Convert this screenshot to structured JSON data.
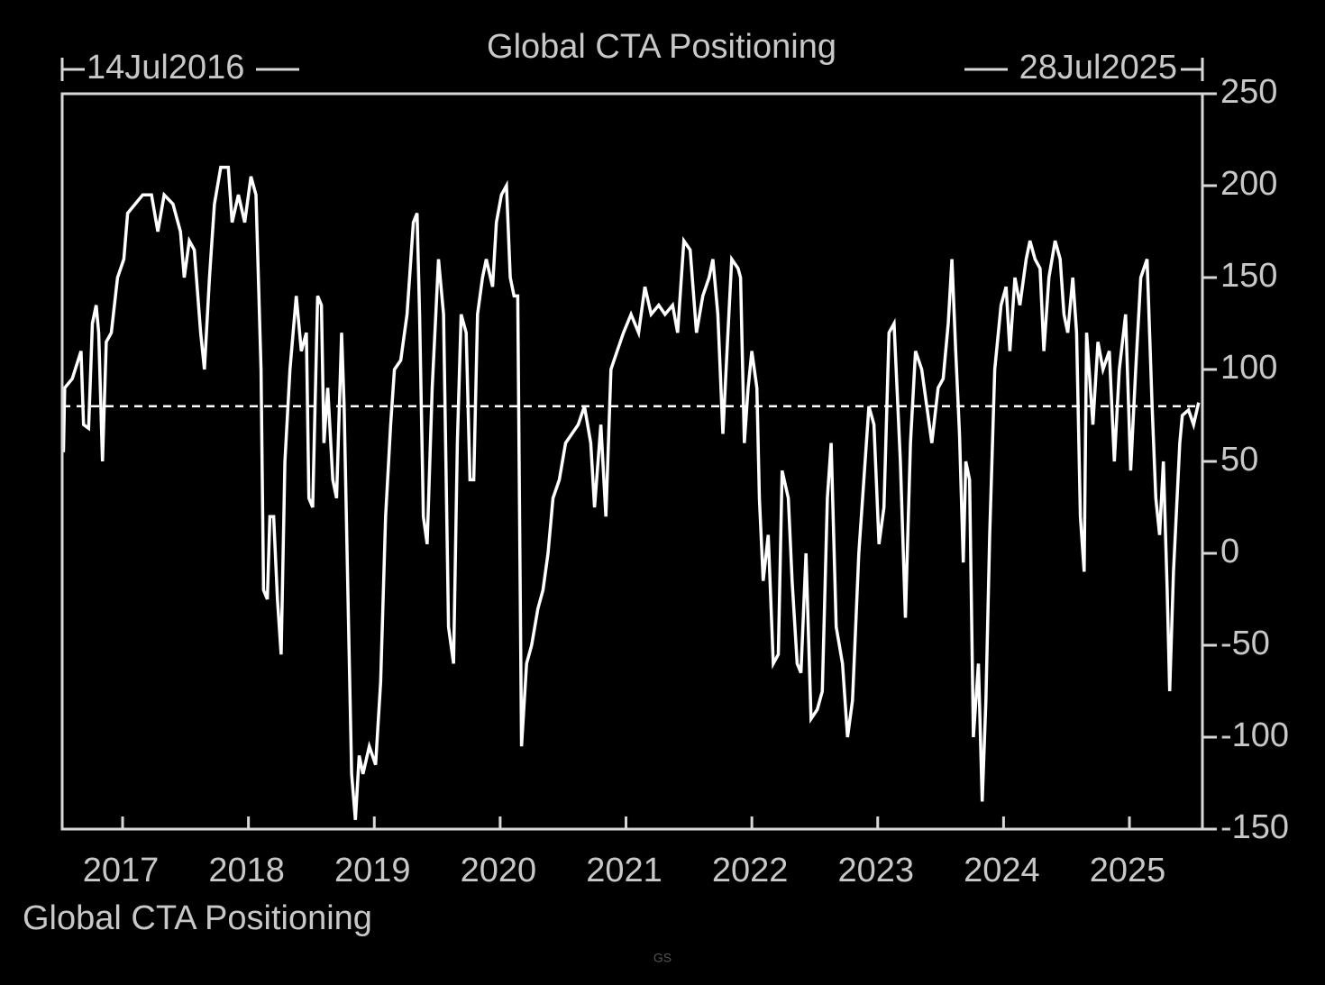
{
  "chart_data": {
    "type": "line",
    "title": "Global CTA Positioning",
    "start_label": "14Jul2016",
    "end_label": "28Jul2025",
    "source": "GS",
    "xlim": [
      2016.52,
      2025.58
    ],
    "xticks": [
      2017,
      2018,
      2019,
      2020,
      2021,
      2022,
      2023,
      2024,
      2025
    ],
    "ylim": [
      -150,
      250
    ],
    "yticks": [
      -150,
      -100,
      -50,
      0,
      50,
      100,
      150,
      200,
      250
    ],
    "y_axis_side": "right",
    "reference_line": 80,
    "legend": "bottom-left",
    "x": [
      2016.53,
      2016.54,
      2016.6,
      2016.67,
      2016.69,
      2016.73,
      2016.76,
      2016.79,
      2016.81,
      2016.84,
      2016.87,
      2016.91,
      2016.96,
      2017.01,
      2017.04,
      2017.1,
      2017.16,
      2017.23,
      2017.28,
      2017.33,
      2017.4,
      2017.46,
      2017.49,
      2017.53,
      2017.57,
      2017.62,
      2017.65,
      2017.69,
      2017.73,
      2017.78,
      2017.84,
      2017.87,
      2017.92,
      2017.97,
      2018.02,
      2018.06,
      2018.1,
      2018.12,
      2018.15,
      2018.17,
      2018.2,
      2018.23,
      2018.26,
      2018.29,
      2018.33,
      2018.38,
      2018.42,
      2018.46,
      2018.48,
      2018.51,
      2018.55,
      2018.58,
      2018.6,
      2018.63,
      2018.67,
      2018.7,
      2018.74,
      2018.76,
      2018.79,
      2018.82,
      2018.85,
      2018.88,
      2018.91,
      2018.96,
      2019.01,
      2019.05,
      2019.09,
      2019.13,
      2019.16,
      2019.21,
      2019.26,
      2019.31,
      2019.34,
      2019.36,
      2019.39,
      2019.42,
      2019.46,
      2019.51,
      2019.55,
      2019.59,
      2019.63,
      2019.66,
      2019.69,
      2019.73,
      2019.76,
      2019.79,
      2019.82,
      2019.86,
      2019.89,
      2019.94,
      2019.97,
      2020.01,
      2020.05,
      2020.08,
      2020.11,
      2020.14,
      2020.17,
      2020.21,
      2020.25,
      2020.3,
      2020.34,
      2020.38,
      2020.42,
      2020.47,
      2020.52,
      2020.57,
      2020.62,
      2020.67,
      2020.72,
      2020.75,
      2020.8,
      2020.84,
      2020.88,
      2020.93,
      2020.98,
      2021.04,
      2021.1,
      2021.15,
      2021.2,
      2021.26,
      2021.31,
      2021.37,
      2021.41,
      2021.46,
      2021.51,
      2021.56,
      2021.61,
      2021.66,
      2021.69,
      2021.73,
      2021.77,
      2021.81,
      2021.84,
      2021.89,
      2021.91,
      2021.94,
      2021.97,
      2022.0,
      2022.04,
      2022.06,
      2022.09,
      2022.13,
      2022.17,
      2022.21,
      2022.24,
      2022.29,
      2022.32,
      2022.36,
      2022.39,
      2022.43,
      2022.47,
      2022.52,
      2022.56,
      2022.6,
      2022.63,
      2022.67,
      2022.72,
      2022.76,
      2022.8,
      2022.85,
      2022.89,
      2022.93,
      2022.97,
      2023.01,
      2023.05,
      2023.09,
      2023.13,
      2023.18,
      2023.22,
      2023.26,
      2023.3,
      2023.35,
      2023.39,
      2023.43,
      2023.48,
      2023.52,
      2023.56,
      2023.59,
      2023.62,
      2023.65,
      2023.68,
      2023.7,
      2023.73,
      2023.76,
      2023.8,
      2023.83,
      2023.86,
      2023.89,
      2023.93,
      2023.98,
      2024.02,
      2024.05,
      2024.09,
      2024.13,
      2024.18,
      2024.21,
      2024.25,
      2024.29,
      2024.32,
      2024.36,
      2024.41,
      2024.45,
      2024.48,
      2024.51,
      2024.55,
      2024.58,
      2024.61,
      2024.64,
      2024.66,
      2024.71,
      2024.75,
      2024.79,
      2024.84,
      2024.88,
      2024.92,
      2024.97,
      2025.01,
      2025.05,
      2025.09,
      2025.14,
      2025.18,
      2025.21,
      2025.24,
      2025.27,
      2025.3,
      2025.32,
      2025.35,
      2025.4,
      2025.42,
      2025.47,
      2025.51,
      2025.55
    ],
    "series": [
      {
        "name": "Global CTA Positioning",
        "color": "#ffffff",
        "values": [
          55,
          90,
          95,
          110,
          70,
          68,
          125,
          135,
          120,
          50,
          115,
          120,
          150,
          160,
          185,
          190,
          195,
          195,
          175,
          195,
          190,
          175,
          150,
          170,
          165,
          120,
          100,
          150,
          190,
          210,
          210,
          180,
          195,
          180,
          205,
          195,
          100,
          -20,
          -25,
          20,
          20,
          -25,
          -55,
          50,
          100,
          140,
          110,
          120,
          30,
          25,
          140,
          135,
          60,
          90,
          40,
          30,
          120,
          80,
          -20,
          -120,
          -145,
          -110,
          -120,
          -105,
          -115,
          -70,
          20,
          70,
          100,
          105,
          130,
          180,
          185,
          130,
          20,
          5,
          90,
          160,
          130,
          -40,
          -60,
          60,
          130,
          120,
          40,
          40,
          130,
          150,
          160,
          145,
          180,
          195,
          200,
          150,
          140,
          140,
          -105,
          -60,
          -50,
          -30,
          -20,
          0,
          30,
          40,
          60,
          65,
          70,
          80,
          60,
          25,
          70,
          20,
          100,
          110,
          120,
          130,
          120,
          145,
          130,
          135,
          130,
          135,
          120,
          170,
          165,
          120,
          140,
          150,
          160,
          130,
          65,
          120,
          160,
          155,
          150,
          60,
          90,
          110,
          90,
          30,
          -15,
          10,
          -60,
          -55,
          45,
          30,
          -15,
          -60,
          -65,
          0,
          -90,
          -85,
          -75,
          30,
          60,
          -40,
          -60,
          -100,
          -80,
          0,
          40,
          80,
          70,
          5,
          25,
          120,
          125,
          50,
          -35,
          60,
          110,
          100,
          80,
          60,
          90,
          95,
          125,
          160,
          110,
          65,
          -5,
          50,
          40,
          -100,
          -60,
          -135,
          -80,
          10,
          100,
          135,
          145,
          110,
          150,
          135,
          160,
          170,
          160,
          155,
          110,
          150,
          170,
          160,
          130,
          120,
          150,
          120,
          20,
          -10,
          120,
          70,
          115,
          100,
          110,
          50,
          100,
          130,
          45,
          100,
          150,
          160,
          80,
          30,
          10,
          50,
          -20,
          -75,
          -10,
          60,
          75,
          78,
          70,
          82
        ]
      }
    ]
  }
}
